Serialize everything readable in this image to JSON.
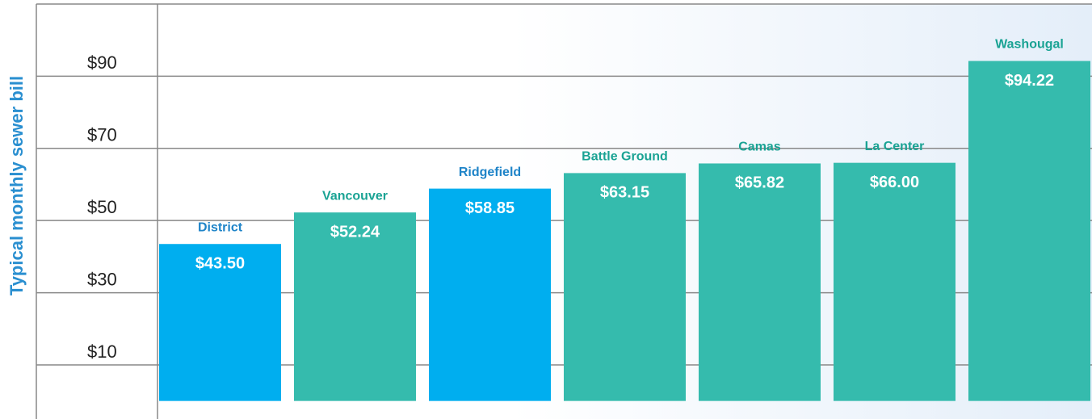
{
  "chart_data": {
    "type": "bar",
    "y_label": "Typical monthly sewer bill",
    "categories": [
      "District",
      "Vancouver",
      "Ridgefield",
      "Battle Ground",
      "Camas",
      "La Center",
      "Washougal"
    ],
    "values": [
      43.5,
      52.24,
      58.85,
      63.15,
      65.82,
      66.0,
      94.22
    ],
    "value_labels": [
      "$43.50",
      "$52.24",
      "$58.85",
      "$63.15",
      "$65.82",
      "$66.00",
      "$94.22"
    ],
    "colors": [
      "#00aeef",
      "#35bbad",
      "#00aeef",
      "#35bbad",
      "#35bbad",
      "#35bbad",
      "#35bbad"
    ],
    "label_colors": [
      "#1f84c8",
      "#1aa394",
      "#1f84c8",
      "#1aa394",
      "#1aa394",
      "#1aa394",
      "#1aa394"
    ],
    "ylim": [
      -5,
      110
    ],
    "yticks": [
      {
        "value": 10,
        "label": "$10"
      },
      {
        "value": 30,
        "label": "$30"
      },
      {
        "value": 50,
        "label": "$50"
      },
      {
        "value": 70,
        "label": "$70"
      },
      {
        "value": 90,
        "label": "$90"
      }
    ],
    "grid": true
  }
}
